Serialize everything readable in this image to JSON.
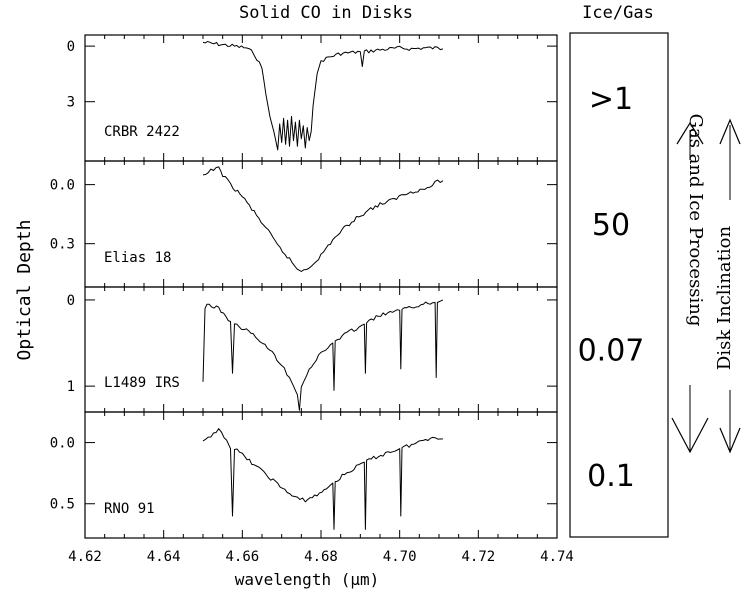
{
  "chart_data": {
    "type": "line",
    "title": "Solid CO in Disks",
    "xlabel": "wavelength (µm)",
    "ylabel": "Optical Depth",
    "xlim": [
      4.62,
      4.74
    ],
    "x_ticks": [
      "4.62",
      "4.64",
      "4.66",
      "4.68",
      "4.70",
      "4.72",
      "4.74"
    ],
    "grid": false,
    "panels": [
      {
        "name": "CRBR 2422",
        "ylim": [
          -0.6,
          6.2
        ],
        "y_ticks": [
          0,
          3
        ],
        "y_tick_labels": [
          "0",
          "3"
        ],
        "series": [
          {
            "x": [
              4.65,
              4.654,
              4.658,
              4.661,
              4.663,
              4.665,
              4.666,
              4.667,
              4.668,
              4.669,
              4.6695,
              4.67,
              4.6705,
              4.671,
              4.6715,
              4.672,
              4.6725,
              4.673,
              4.6735,
              4.674,
              4.6745,
              4.675,
              4.6755,
              4.676,
              4.6765,
              4.677,
              4.6775,
              4.678,
              4.679,
              4.68,
              4.682,
              4.685,
              4.69,
              4.6905,
              4.691,
              4.695,
              4.7,
              4.703,
              4.706,
              4.709,
              4.711
            ],
            "y": [
              -0.2,
              -0.1,
              0.0,
              0.1,
              0.4,
              1.2,
              2.6,
              3.8,
              4.6,
              5.6,
              4.2,
              5.2,
              3.9,
              5.3,
              4.0,
              5.4,
              3.8,
              5.1,
              4.1,
              5.4,
              4.0,
              5.0,
              4.3,
              5.5,
              4.4,
              5.1,
              4.6,
              3.2,
              1.5,
              0.8,
              0.6,
              0.4,
              0.3,
              1.1,
              0.3,
              0.2,
              0.1,
              0.15,
              0.1,
              0.1,
              0.15
            ]
          }
        ],
        "ice_gas": ">1"
      },
      {
        "name": "Elias 18",
        "ylim": [
          -0.12,
          0.52
        ],
        "y_ticks": [
          0.0,
          0.3
        ],
        "y_tick_labels": [
          "0.0",
          "0.3"
        ],
        "series": [
          {
            "x": [
              4.65,
              4.652,
              4.654,
              4.655,
              4.657,
              4.66,
              4.663,
              4.666,
              4.669,
              4.672,
              4.674,
              4.675,
              4.677,
              4.68,
              4.683,
              4.686,
              4.689,
              4.692,
              4.695,
              4.698,
              4.701,
              4.704,
              4.707,
              4.709,
              4.711
            ],
            "y": [
              -0.04,
              -0.07,
              -0.09,
              -0.05,
              0.0,
              0.06,
              0.14,
              0.22,
              0.31,
              0.38,
              0.43,
              0.44,
              0.42,
              0.36,
              0.28,
              0.22,
              0.17,
              0.13,
              0.1,
              0.08,
              0.05,
              0.03,
              0.02,
              -0.01,
              -0.02
            ]
          }
        ],
        "ice_gas": "50"
      },
      {
        "name": "L1489 IRS",
        "ylim": [
          -0.15,
          1.3
        ],
        "y_ticks": [
          0,
          1
        ],
        "y_tick_labels": [
          "0",
          "1"
        ],
        "series": [
          {
            "x": [
              4.65,
              4.6505,
              4.651,
              4.654,
              4.657,
              4.6575,
              4.658,
              4.661,
              4.664,
              4.667,
              4.67,
              4.672,
              4.673,
              4.674,
              4.6745,
              4.675,
              4.677,
              4.68,
              4.683,
              4.6833,
              4.6836,
              4.686,
              4.689,
              4.691,
              4.6913,
              4.6916,
              4.694,
              4.697,
              4.7,
              4.7003,
              4.7006,
              4.703,
              4.706,
              4.709,
              4.7093,
              4.7096,
              4.711
            ],
            "y": [
              0.95,
              0.1,
              0.05,
              0.1,
              0.25,
              0.85,
              0.28,
              0.35,
              0.45,
              0.58,
              0.75,
              0.9,
              1.0,
              1.1,
              1.28,
              1.0,
              0.8,
              0.62,
              0.5,
              1.05,
              0.48,
              0.4,
              0.33,
              0.28,
              0.85,
              0.27,
              0.2,
              0.15,
              0.12,
              0.8,
              0.12,
              0.08,
              0.05,
              0.03,
              0.9,
              0.03,
              0.0
            ]
          }
        ],
        "ice_gas": "0.07"
      },
      {
        "name": "RNO 91",
        "ylim": [
          -0.25,
          0.78
        ],
        "y_ticks": [
          0.0,
          0.5
        ],
        "y_tick_labels": [
          "0.0",
          "0.5"
        ],
        "series": [
          {
            "x": [
              4.65,
              4.652,
              4.654,
              4.656,
              4.657,
              4.6575,
              4.658,
              4.66,
              4.663,
              4.666,
              4.669,
              4.672,
              4.674,
              4.676,
              4.679,
              4.682,
              4.683,
              4.6833,
              4.6836,
              4.686,
              4.689,
              4.691,
              4.6913,
              4.6916,
              4.694,
              4.697,
              4.7,
              4.7003,
              4.7006,
              4.703,
              4.706,
              4.709,
              4.711
            ],
            "y": [
              0.0,
              -0.05,
              -0.12,
              -0.02,
              0.05,
              0.6,
              0.05,
              0.1,
              0.18,
              0.26,
              0.34,
              0.42,
              0.46,
              0.47,
              0.43,
              0.36,
              0.33,
              0.71,
              0.32,
              0.26,
              0.2,
              0.16,
              0.71,
              0.15,
              0.12,
              0.08,
              0.05,
              0.6,
              0.04,
              0.02,
              -0.02,
              -0.05,
              -0.03
            ]
          }
        ],
        "ice_gas": "0.1"
      }
    ]
  },
  "side_box": {
    "header": "Ice/Gas"
  },
  "arrows": {
    "up_label": "Gas and Ice Processing",
    "down_label": "Disk Inclination"
  }
}
